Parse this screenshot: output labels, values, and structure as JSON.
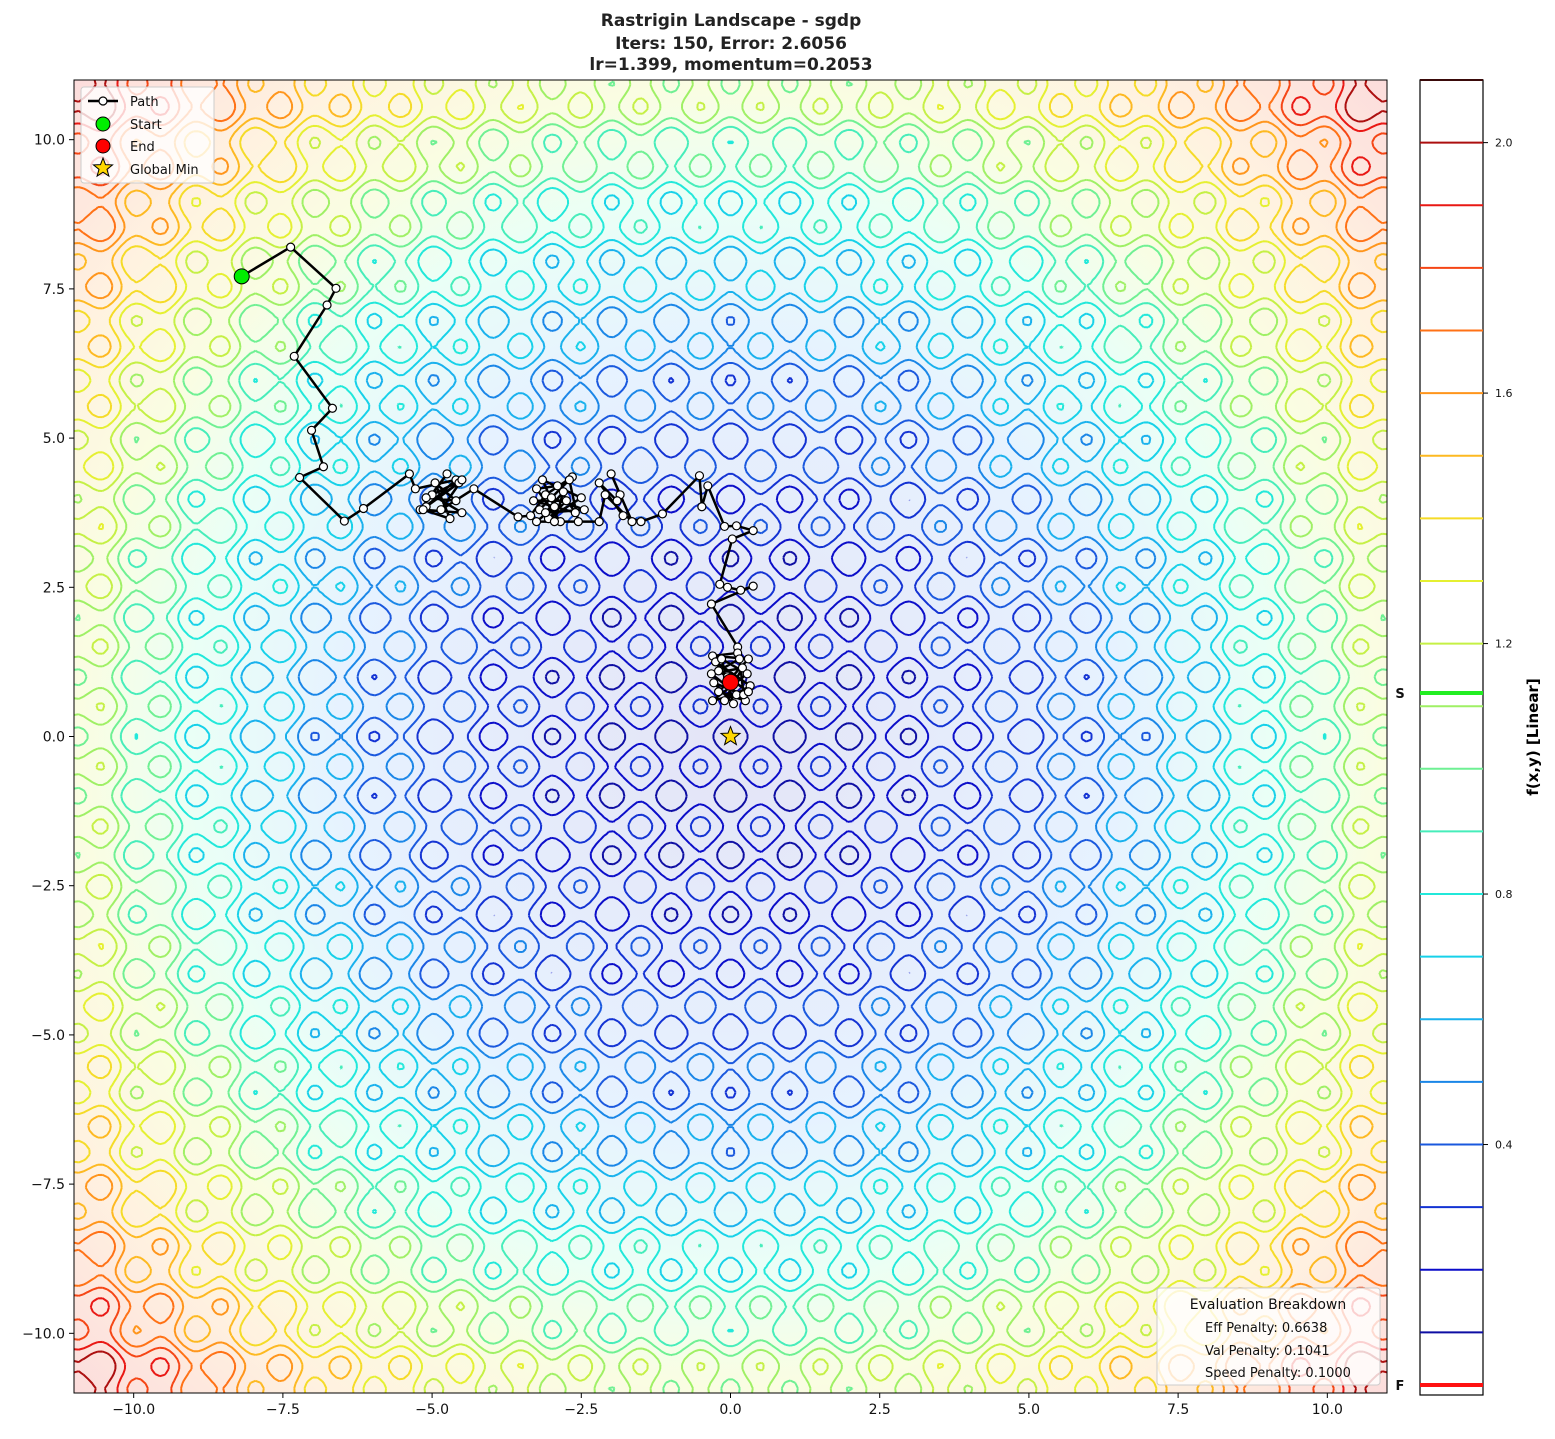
{
  "chart_data": {
    "type": "contour",
    "title_lines": [
      "Rastrigin Landscape - sgdp",
      "Iters: 150, Error: 2.6056",
      "lr=1.399, momentum=0.2053"
    ],
    "function": "rastrigin",
    "xlim": [
      -11,
      11
    ],
    "ylim": [
      -11,
      11
    ],
    "x_ticks": [
      -10,
      -7.5,
      -5,
      -2.5,
      0,
      2.5,
      5,
      7.5,
      10
    ],
    "x_tick_labels": [
      "−10.0",
      "−7.5",
      "−5.0",
      "−2.5",
      "0.0",
      "2.5",
      "5.0",
      "7.5",
      "10.0"
    ],
    "y_ticks": [
      10,
      7.5,
      5,
      2.5,
      0,
      -2.5,
      -5,
      -7.5,
      -10
    ],
    "y_tick_labels": [
      "10.0",
      "7.5",
      "5.0",
      "2.5",
      "0.0",
      "−2.5",
      "−5.0",
      "−7.5",
      "−10.0"
    ],
    "contour_levels": [
      0.1,
      0.2,
      0.3,
      0.4,
      0.5,
      0.6,
      0.7,
      0.8,
      0.9,
      1.0,
      1.1,
      1.2,
      1.3,
      1.4,
      1.5,
      1.6,
      1.7,
      1.8,
      1.9,
      2.0,
      2.1
    ],
    "colormap_stops": [
      "#12127a",
      "#0a0ac8",
      "#1a50dc",
      "#1aa8ee",
      "#14e6e6",
      "#5af0a8",
      "#b4f050",
      "#f0f02a",
      "#ffb020",
      "#ff6a14",
      "#e81414",
      "#6a0a0a"
    ],
    "colorbar": {
      "label": "f(x,y) [Linear]",
      "range": [
        0,
        2.1
      ],
      "ticks": [
        2.0,
        1.6,
        1.2,
        0.8,
        0.4
      ],
      "tick_labels": [
        "2.0",
        "1.6",
        "1.2",
        "0.8",
        "0.4"
      ],
      "start_marker": {
        "label": "S",
        "value": 1.121,
        "color": "#22ee22"
      },
      "final_marker": {
        "label": "F",
        "value": 0.016,
        "color": "#ff1111"
      }
    },
    "path": [
      [
        -8.19,
        7.71
      ],
      [
        -7.37,
        8.2
      ],
      [
        -6.61,
        7.51
      ],
      [
        -6.76,
        7.23
      ],
      [
        -7.31,
        6.37
      ],
      [
        -6.67,
        5.5
      ],
      [
        -7.02,
        5.13
      ],
      [
        -6.82,
        4.52
      ],
      [
        -7.22,
        4.34
      ],
      [
        -6.47,
        3.61
      ],
      [
        -6.15,
        3.82
      ],
      [
        -5.38,
        4.4
      ],
      [
        -5.28,
        4.15
      ],
      [
        -4.6,
        4.3
      ],
      [
        -5.1,
        3.85
      ],
      [
        -4.55,
        4.25
      ],
      [
        -5.2,
        3.8
      ],
      [
        -4.75,
        4.4
      ],
      [
        -5.0,
        4.05
      ],
      [
        -4.5,
        3.75
      ],
      [
        -5.15,
        3.8
      ],
      [
        -4.7,
        3.65
      ],
      [
        -4.95,
        4.25
      ],
      [
        -4.6,
        3.95
      ],
      [
        -5.1,
        4.0
      ],
      [
        -4.5,
        4.3
      ],
      [
        -4.85,
        3.8
      ],
      [
        -4.3,
        4.15
      ],
      [
        -3.56,
        3.68
      ],
      [
        -3.35,
        3.7
      ],
      [
        -3.1,
        4.05
      ],
      [
        -2.65,
        4.35
      ],
      [
        -3.2,
        3.8
      ],
      [
        -2.85,
        3.6
      ],
      [
        -3.25,
        4.15
      ],
      [
        -2.9,
        4.2
      ],
      [
        -2.6,
        3.75
      ],
      [
        -3.3,
        3.95
      ],
      [
        -2.75,
        3.95
      ],
      [
        -3.05,
        3.65
      ],
      [
        -2.5,
        4.0
      ],
      [
        -3.15,
        4.3
      ],
      [
        -2.95,
        3.85
      ],
      [
        -3.25,
        3.6
      ],
      [
        -2.55,
        3.6
      ],
      [
        -2.7,
        4.3
      ],
      [
        -3.0,
        4.0
      ],
      [
        -2.45,
        3.8
      ],
      [
        -3.1,
        3.75
      ],
      [
        -2.8,
        4.1
      ],
      [
        -2.95,
        3.6
      ],
      [
        -2.2,
        3.6
      ],
      [
        -2.1,
        4.05
      ],
      [
        -1.65,
        3.6
      ],
      [
        -2.0,
        4.4
      ],
      [
        -1.85,
        4.05
      ],
      [
        -1.9,
        3.95
      ],
      [
        -2.2,
        4.25
      ],
      [
        -1.8,
        3.7
      ],
      [
        -1.5,
        3.6
      ],
      [
        -1.14,
        3.73
      ],
      [
        -0.52,
        4.37
      ],
      [
        -0.48,
        3.85
      ],
      [
        -0.38,
        4.2
      ],
      [
        -0.1,
        3.52
      ],
      [
        0.1,
        3.53
      ],
      [
        0.38,
        3.45
      ],
      [
        0.03,
        3.31
      ],
      [
        -0.18,
        2.55
      ],
      [
        -0.05,
        2.5
      ],
      [
        0.17,
        2.45
      ],
      [
        0.38,
        2.52
      ],
      [
        -0.32,
        2.22
      ],
      [
        0.12,
        1.5
      ],
      [
        0.12,
        1.4
      ],
      [
        -0.3,
        1.35
      ],
      [
        0.3,
        1.3
      ],
      [
        -0.2,
        0.75
      ],
      [
        0.25,
        0.6
      ],
      [
        -0.32,
        1.05
      ],
      [
        0.2,
        1.15
      ],
      [
        -0.1,
        0.6
      ],
      [
        0.33,
        0.85
      ],
      [
        -0.25,
        1.25
      ],
      [
        0.1,
        0.7
      ],
      [
        -0.3,
        0.6
      ],
      [
        0.28,
        1.05
      ],
      [
        -0.15,
        1.3
      ],
      [
        0.05,
        0.55
      ],
      [
        -0.28,
        0.9
      ],
      [
        0.22,
        0.7
      ],
      [
        0.15,
        1.3
      ],
      [
        -0.2,
        1.1
      ],
      [
        0.3,
        0.75
      ],
      [
        -0.05,
        1.0
      ],
      [
        0.0,
        0.91
      ]
    ],
    "start": [
      -8.19,
      7.71
    ],
    "end": [
      0.0,
      0.91
    ],
    "global_min": [
      0,
      0
    ],
    "legend": {
      "placement": "top-left",
      "entries": [
        "Path",
        "Start",
        "End",
        "Global Min"
      ]
    },
    "colors": {
      "start": "#00ee00",
      "end": "#ff0000",
      "global_min": "#ffd700",
      "path": "#000000"
    },
    "evaluation": {
      "title": "Evaluation Breakdown",
      "lines": [
        "Eff Penalty: 0.6638",
        "Val Penalty: 0.1041",
        "Speed Penalty: 0.1000"
      ]
    }
  }
}
